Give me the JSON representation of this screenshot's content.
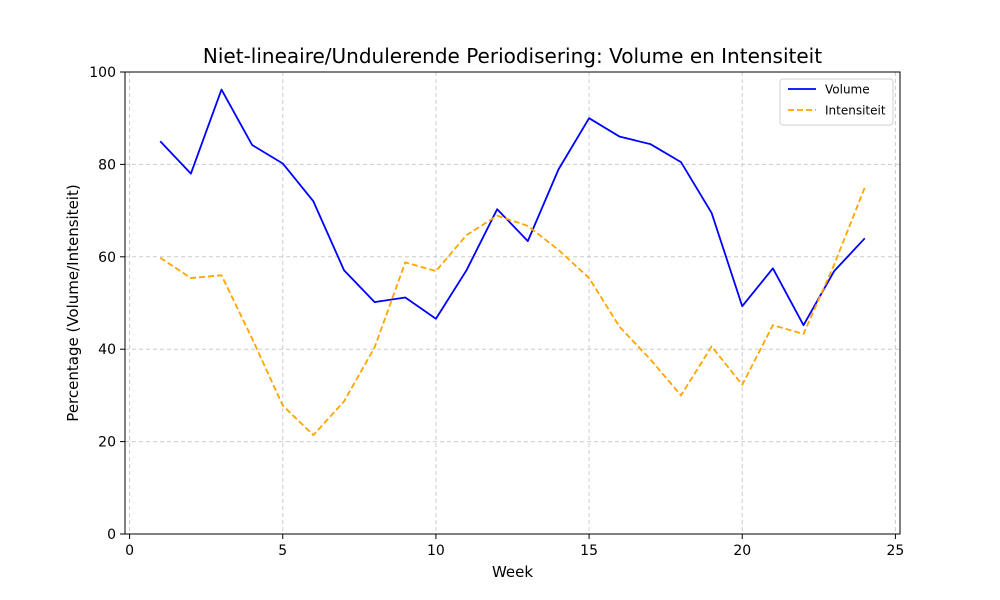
{
  "chart_data": {
    "type": "line",
    "title": "Niet-lineaire/Undulerende Periodisering: Volume en Intensiteit",
    "xlabel": "Week",
    "ylabel": "Percentage (Volume/Intensiteit)",
    "xlim": [
      -0.15,
      25.15
    ],
    "ylim": [
      0,
      100
    ],
    "xticks": [
      0,
      5,
      10,
      15,
      20,
      25
    ],
    "yticks": [
      0,
      20,
      40,
      60,
      80,
      100
    ],
    "grid": true,
    "legend_position": "top-right",
    "x": [
      1,
      2,
      3,
      4,
      5,
      6,
      7,
      8,
      9,
      10,
      11,
      12,
      13,
      14,
      15,
      16,
      17,
      18,
      19,
      20,
      21,
      22,
      23,
      24
    ],
    "series": [
      {
        "name": "Volume",
        "color": "#0000ff",
        "style": "solid",
        "values": [
          85,
          78,
          96.2,
          84.2,
          80.2,
          72,
          57.1,
          50.2,
          51.2,
          46.6,
          57.1,
          70.3,
          63.4,
          78.9,
          90,
          86,
          84.4,
          80.5,
          69.5,
          49.3,
          57.5,
          45.2,
          56.9,
          64
        ]
      },
      {
        "name": "Intensiteit",
        "color": "#ffa500",
        "style": "dashed",
        "values": [
          59.8,
          55.4,
          56,
          42.3,
          27.8,
          21.4,
          28.7,
          40.4,
          58.8,
          56.9,
          64.7,
          68.9,
          66.7,
          61.5,
          55.4,
          44.8,
          37.8,
          30,
          40.6,
          32.3,
          45.2,
          43.3,
          58.3,
          75
        ]
      }
    ]
  }
}
